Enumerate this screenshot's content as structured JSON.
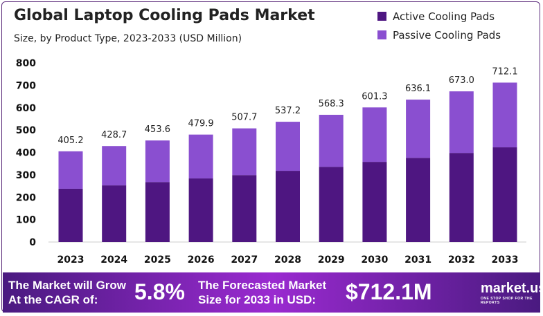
{
  "chart_data": {
    "type": "bar",
    "stacked": true,
    "title": "Global Laptop Cooling Pads Market",
    "subtitle": "Size, by Product Type, 2023-2033 (USD Million)",
    "categories": [
      "2023",
      "2024",
      "2025",
      "2026",
      "2027",
      "2028",
      "2029",
      "2030",
      "2031",
      "2032",
      "2033"
    ],
    "series": [
      {
        "name": "Active Cooling Pads",
        "color": "#4e1681",
        "values": [
          238,
          253,
          268,
          284,
          299,
          318,
          336,
          358,
          376,
          398,
          423
        ]
      },
      {
        "name": "Passive Cooling Pads",
        "color": "#8a4fd0",
        "values": [
          167.2,
          175.7,
          185.6,
          195.9,
          208.7,
          219.2,
          232.3,
          243.3,
          260.1,
          275.0,
          289.1
        ]
      }
    ],
    "totals": [
      "405.2",
      "428.7",
      "453.6",
      "479.9",
      "507.7",
      "537.2",
      "568.3",
      "601.3",
      "636.1",
      "673.0",
      "712.1"
    ],
    "ylim": [
      0,
      800
    ],
    "yticks": [
      "0",
      "100",
      "200",
      "300",
      "400",
      "500",
      "600",
      "700",
      "800"
    ],
    "grid": false,
    "legend": "top-right"
  },
  "footer": {
    "cagr_label_1": "The Market will Grow",
    "cagr_label_2": "At the CAGR of:",
    "cagr_value": "5.8%",
    "forecast_label_1": "The Forecasted Market",
    "forecast_label_2": "Size for 2033 in USD:",
    "forecast_value": "$712.1M",
    "logo": "market.us",
    "logo_tagline": "ONE STOP SHOP FOR THE REPORTS"
  }
}
